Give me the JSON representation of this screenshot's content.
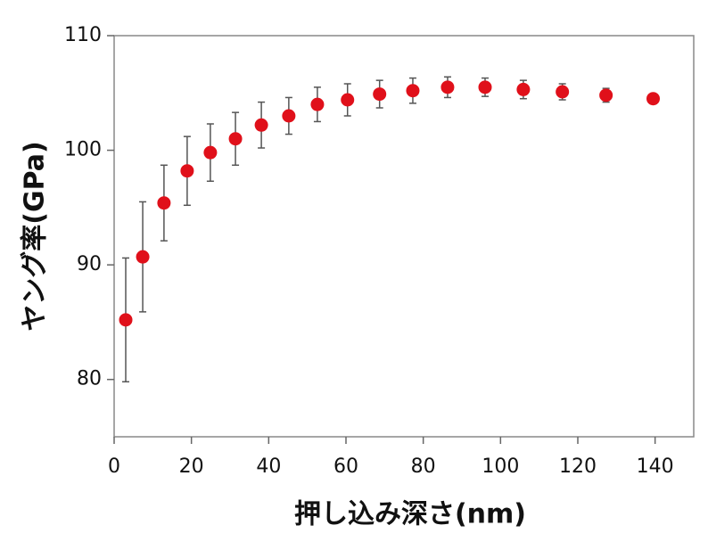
{
  "chart_data": {
    "type": "scatter",
    "x_label": "押し込み深さ(nm)",
    "y_label": "ヤング率(GPa)",
    "x": [
      3.0,
      7.4,
      12.9,
      18.9,
      24.9,
      31.4,
      38.1,
      45.2,
      52.6,
      60.4,
      68.7,
      77.3,
      86.3,
      96.0,
      105.9,
      116.0,
      127.3,
      139.5
    ],
    "values": [
      85.2,
      90.7,
      95.4,
      98.2,
      99.8,
      101.0,
      102.2,
      103.0,
      104.0,
      104.4,
      104.9,
      105.2,
      105.5,
      105.5,
      105.3,
      105.1,
      104.8,
      104.5
    ],
    "errors": [
      5.4,
      4.8,
      3.3,
      3.0,
      2.5,
      2.3,
      2.0,
      1.6,
      1.5,
      1.4,
      1.2,
      1.1,
      0.9,
      0.8,
      0.8,
      0.7,
      0.6,
      0.4
    ],
    "color": "#e0101a",
    "error_color": "#555555",
    "xlim": [
      0,
      150
    ],
    "ylim": [
      75,
      110
    ],
    "xticks": [
      0,
      20,
      40,
      60,
      80,
      100,
      120,
      140
    ],
    "yticks": [
      80,
      90,
      100,
      110
    ]
  }
}
